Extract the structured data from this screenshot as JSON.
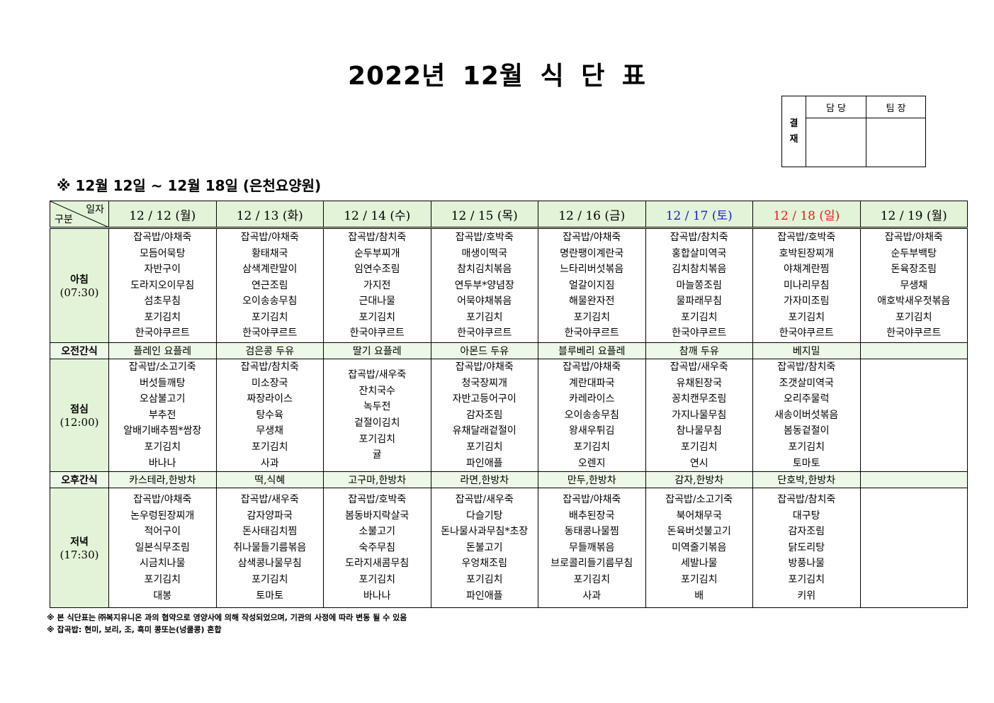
{
  "title": "2022년 12월 식 단 표",
  "approval": {
    "label": "결\n재",
    "label_top": "결",
    "label_bottom": "재",
    "col1": "담 당",
    "col2": "팀 장"
  },
  "subtitle": "※ 12월 12일 ~ 12월 18일 (은천요양원)",
  "corner": {
    "date_label": "일자",
    "category_label": "구분"
  },
  "colors": {
    "header_bg": "#e3f3d8",
    "saturday": "#1a1ad6",
    "sunday": "#e01b1b"
  },
  "days": [
    {
      "label": "12 / 12 (월)",
      "color": "#000000"
    },
    {
      "label": "12 / 13 (화)",
      "color": "#000000"
    },
    {
      "label": "12 / 14 (수)",
      "color": "#000000"
    },
    {
      "label": "12 / 15 (목)",
      "color": "#000000"
    },
    {
      "label": "12 / 16 (금)",
      "color": "#000000"
    },
    {
      "label": "12 / 17 (토)",
      "color": "#1a1ad6"
    },
    {
      "label": "12 / 18 (일)",
      "color": "#e01b1b"
    },
    {
      "label": "12 / 19 (월)",
      "color": "#000000"
    }
  ],
  "rows": [
    {
      "key": "breakfast",
      "label": "아침",
      "time": "(07:30)",
      "type": "meal",
      "cells": [
        [
          "잡곡밥/야채죽",
          "모듬어묵탕",
          "자반구이",
          "도라지오이무침",
          "섬초무침",
          "포기김치",
          "한국야쿠르트"
        ],
        [
          "잡곡밥/야채죽",
          "황태채국",
          "삼색계란말이",
          "연근조림",
          "오이송송무침",
          "포기김치",
          "한국야쿠르트"
        ],
        [
          "잡곡밥/참치죽",
          "순두부찌개",
          "임연수조림",
          "가지전",
          "근대나물",
          "포기김치",
          "한국야쿠르트"
        ],
        [
          "잡곡밥/호박죽",
          "매생이떡국",
          "참치김치볶음",
          "연두부*양념장",
          "어묵야채볶음",
          "포기김치",
          "한국야쿠르트"
        ],
        [
          "잡곡밥/야채죽",
          "명란팽이계란국",
          "느타리버섯볶음",
          "얼갈이지짐",
          "해물완자전",
          "포기김치",
          "한국야쿠르트"
        ],
        [
          "잡곡밥/참치죽",
          "홍합살미역국",
          "김치참치볶음",
          "마늘쫑조림",
          "물파래무침",
          "포기김치",
          "한국야쿠르트"
        ],
        [
          "잡곡밥/호박죽",
          "호박된장찌개",
          "야채계란찜",
          "미나리무침",
          "가자미조림",
          "포기김치",
          "한국야쿠르트"
        ],
        [
          "잡곡밥/야채죽",
          "순두부백탕",
          "돈육장조림",
          "무생채",
          "애호박새우젓볶음",
          "포기김치",
          "한국야쿠르트"
        ]
      ]
    },
    {
      "key": "morning_snack",
      "label": "오전간식",
      "time": "",
      "type": "snack",
      "cells": [
        "플레인 요플레",
        "검은콩 두유",
        "딸기 요플레",
        "아몬드 두유",
        "블루베리 요플레",
        "참깨 두유",
        "베지밀",
        ""
      ]
    },
    {
      "key": "lunch",
      "label": "점심",
      "time": "(12:00)",
      "type": "meal",
      "cells": [
        [
          "잡곡밥/소고기죽",
          "버섯들깨탕",
          "오삼불고기",
          "부추전",
          "알배기배추찜*쌈장",
          "포기김치",
          "바나나"
        ],
        [
          "잡곡밥/참치죽",
          "미소장국",
          "짜장라이스",
          "탕수육",
          "무생채",
          "포기김치",
          "사과"
        ],
        [
          "잡곡밥/새우죽",
          "잔치국수",
          "녹두전",
          "겉절이김치",
          "포기김치",
          "귤"
        ],
        [
          "잡곡밥/야채죽",
          "청국장찌개",
          "자반고등어구이",
          "감자조림",
          "유채달래겉절이",
          "포기김치",
          "파인애플"
        ],
        [
          "잡곡밥/야채죽",
          "계란대파국",
          "카레라이스",
          "오이송송무침",
          "왕새우튀김",
          "포기김치",
          "오렌지"
        ],
        [
          "잡곡밥/새우죽",
          "유채된장국",
          "꽁치캔무조림",
          "가지나물무침",
          "참나물무침",
          "포기김치",
          "연시"
        ],
        [
          "잡곡밥/참치죽",
          "조갯살미역국",
          "오리주물럭",
          "새송이버섯볶음",
          "봄동겉절이",
          "포기김치",
          "토마토"
        ],
        []
      ]
    },
    {
      "key": "afternoon_snack",
      "label": "오후간식",
      "time": "",
      "type": "snack",
      "cells": [
        "카스테라,한방차",
        "떡,식혜",
        "고구마,한방차",
        "라면,한방차",
        "만두,한방차",
        "감자,한방차",
        "단호박,한방차",
        ""
      ]
    },
    {
      "key": "dinner",
      "label": "저녁",
      "time": "(17:30)",
      "type": "meal",
      "cells": [
        [
          "잡곡밥/야채죽",
          "논우렁된장찌개",
          "적어구이",
          "일본식무조림",
          "시금치나물",
          "포기김치",
          "대봉"
        ],
        [
          "잡곡밥/새우죽",
          "감자양파국",
          "돈사태김치찜",
          "취나물들기름볶음",
          "삼색콩나물무침",
          "포기김치",
          "토마토"
        ],
        [
          "잡곡밥/호박죽",
          "봄동바지락살국",
          "소불고기",
          "숙주무침",
          "도라지새콤무침",
          "포기김치",
          "바나나"
        ],
        [
          "잡곡밥/새우죽",
          "다슬기탕",
          "돈나물사과무침*초장",
          "돈불고기",
          "우엉채조림",
          "포기김치",
          "파인애플"
        ],
        [
          "잡곡밥/야채죽",
          "배추된장국",
          "동태콩나물찜",
          "무들깨볶음",
          "브로콜리들기름무침",
          "포기김치",
          "사과"
        ],
        [
          "잡곡밥/소고기죽",
          "북어채무국",
          "돈육버섯불고기",
          "미역줄기볶음",
          "세발나물",
          "포기김치",
          "배"
        ],
        [
          "잡곡밥/참치죽",
          "대구탕",
          "감자조림",
          "닭도리탕",
          "방풍나물",
          "포기김치",
          "키위"
        ],
        []
      ]
    }
  ],
  "notes": [
    "※ 본 식단표는 ㈜복지유니온 과의 협약으로 영양사에 의해 작성되었으며, 기관의 사정에 따라 변동 될 수 있음",
    "※ 잡곡밥: 현미, 보리, 조, 흑미 콩또는(넝쿨콩) 혼합"
  ]
}
